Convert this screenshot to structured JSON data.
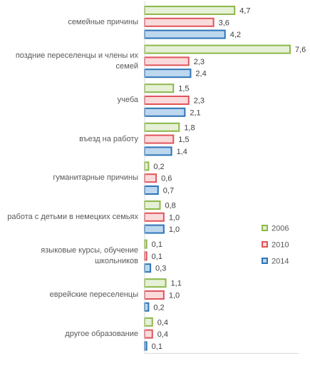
{
  "chart_data": {
    "type": "bar",
    "orientation": "horizontal",
    "categories": [
      "семейные причины",
      "поздние переселенцы и члены их семей",
      "учеба",
      "въезд на работу",
      "гуманитарные причины",
      "работа с детьми в немецких семьях",
      "языковые курсы, обучение школьников",
      "еврейские переселенцы",
      "другое образование"
    ],
    "category_lines": [
      [
        "семейные причины"
      ],
      [
        "поздние переселенцы и члены их",
        "семей"
      ],
      [
        "учеба"
      ],
      [
        "въезд на работу"
      ],
      [
        "гуманитарные причины"
      ],
      [
        "работа с детьми в немецких семьях"
      ],
      [
        "языковые курсы, обучение",
        "школьников"
      ],
      [
        "еврейские переселенцы"
      ],
      [
        "другое образование"
      ]
    ],
    "series": [
      {
        "name": "2006",
        "values": [
          4.7,
          7.6,
          1.5,
          1.8,
          0.2,
          0.8,
          0.1,
          1.1,
          0.4
        ],
        "labels": [
          "4,7",
          "7,6",
          "1,5",
          "1,8",
          "0,2",
          "0,8",
          "0,1",
          "1,1",
          "0,4"
        ],
        "stroke": "#8DB84A",
        "fill": "#E6F0D6"
      },
      {
        "name": "2010",
        "values": [
          3.6,
          2.3,
          2.3,
          1.5,
          0.6,
          1.0,
          0.1,
          1.0,
          0.4
        ],
        "labels": [
          "3,6",
          "2,3",
          "2,3",
          "1,5",
          "0,6",
          "1,0",
          "0,1",
          "1,0",
          "0,4"
        ],
        "stroke": "#E0545A",
        "fill": "#FADBDC"
      },
      {
        "name": "2014",
        "values": [
          4.2,
          2.4,
          2.1,
          1.4,
          0.7,
          1.0,
          0.3,
          0.2,
          0.1
        ],
        "labels": [
          "4,2",
          "2,4",
          "2,1",
          "1,4",
          "0,7",
          "1,0",
          "0,3",
          "0,2",
          "0,1"
        ],
        "stroke": "#2E75B6",
        "fill": "#BDD7EE"
      }
    ],
    "xlim": [
      0,
      7.6
    ],
    "legend_position": "right",
    "grid": false
  }
}
